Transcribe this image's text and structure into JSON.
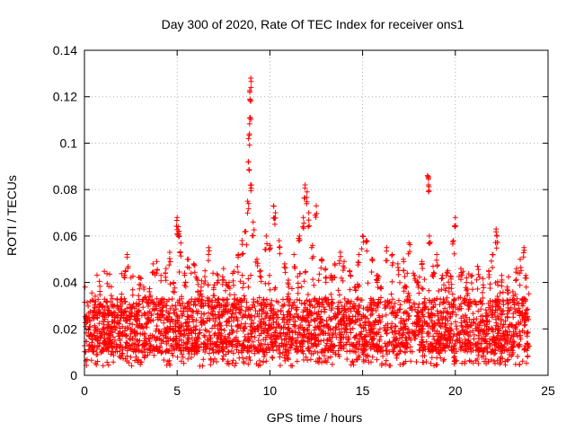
{
  "chart_data": {
    "type": "scatter",
    "title": "Day 300 of 2020, Rate Of TEC Index for receiver ons1",
    "xlabel": "GPS time / hours",
    "ylabel": "ROTI / TECUs",
    "xlim": [
      0,
      25
    ],
    "ylim": [
      0,
      0.14
    ],
    "xticks": [
      0,
      5,
      10,
      15,
      20,
      25
    ],
    "xtick_labels": [
      "0",
      "5",
      "10",
      "15",
      "20",
      "25"
    ],
    "yticks": [
      0,
      0.02,
      0.04,
      0.06,
      0.08,
      0.1,
      0.12,
      0.14
    ],
    "ytick_labels": [
      "0",
      "0.02",
      "0.04",
      "0.06",
      "0.08",
      "0.1",
      "0.12",
      "0.14"
    ],
    "grid": true,
    "marker": "+",
    "color": "#ff0000",
    "series": [
      {
        "name": "ROTI",
        "points": [
          [
            0.1,
            0.024
          ],
          [
            0.3,
            0.021
          ],
          [
            0.5,
            0.028
          ],
          [
            0.8,
            0.019
          ],
          [
            1.0,
            0.03
          ],
          [
            1.3,
            0.022
          ],
          [
            1.5,
            0.033
          ],
          [
            1.8,
            0.026
          ],
          [
            2.0,
            0.035
          ],
          [
            2.2,
            0.045
          ],
          [
            2.3,
            0.052
          ],
          [
            2.5,
            0.029
          ],
          [
            2.8,
            0.031
          ],
          [
            3.0,
            0.042
          ],
          [
            3.2,
            0.038
          ],
          [
            3.5,
            0.036
          ],
          [
            3.7,
            0.048
          ],
          [
            3.9,
            0.049
          ],
          [
            4.2,
            0.033
          ],
          [
            4.4,
            0.046
          ],
          [
            4.6,
            0.053
          ],
          [
            4.8,
            0.04
          ],
          [
            5.0,
            0.068
          ],
          [
            5.05,
            0.064
          ],
          [
            5.1,
            0.062
          ],
          [
            5.2,
            0.057
          ],
          [
            5.4,
            0.044
          ],
          [
            5.6,
            0.05
          ],
          [
            5.9,
            0.048
          ],
          [
            6.1,
            0.041
          ],
          [
            6.3,
            0.038
          ],
          [
            6.5,
            0.045
          ],
          [
            6.7,
            0.055
          ],
          [
            7.0,
            0.039
          ],
          [
            7.2,
            0.043
          ],
          [
            7.5,
            0.046
          ],
          [
            7.8,
            0.04
          ],
          [
            8.0,
            0.044
          ],
          [
            8.3,
            0.052
          ],
          [
            8.5,
            0.058
          ],
          [
            8.7,
            0.062
          ],
          [
            8.8,
            0.075
          ],
          [
            8.85,
            0.092
          ],
          [
            8.9,
            0.104
          ],
          [
            8.95,
            0.111
          ],
          [
            8.92,
            0.122
          ],
          [
            8.97,
            0.128
          ],
          [
            9.0,
            0.082
          ],
          [
            9.1,
            0.066
          ],
          [
            9.3,
            0.05
          ],
          [
            9.5,
            0.045
          ],
          [
            9.8,
            0.06
          ],
          [
            10.0,
            0.056
          ],
          [
            10.2,
            0.073
          ],
          [
            10.3,
            0.07
          ],
          [
            10.5,
            0.058
          ],
          [
            10.8,
            0.048
          ],
          [
            11.0,
            0.041
          ],
          [
            11.3,
            0.052
          ],
          [
            11.6,
            0.06
          ],
          [
            11.8,
            0.068
          ],
          [
            11.9,
            0.082
          ],
          [
            12.0,
            0.079
          ],
          [
            12.1,
            0.07
          ],
          [
            12.3,
            0.056
          ],
          [
            12.5,
            0.073
          ],
          [
            12.8,
            0.05
          ],
          [
            13.0,
            0.046
          ],
          [
            13.3,
            0.043
          ],
          [
            13.5,
            0.048
          ],
          [
            13.8,
            0.053
          ],
          [
            14.0,
            0.049
          ],
          [
            14.3,
            0.045
          ],
          [
            14.6,
            0.038
          ],
          [
            14.8,
            0.052
          ],
          [
            15.0,
            0.06
          ],
          [
            15.2,
            0.058
          ],
          [
            15.5,
            0.05
          ],
          [
            15.8,
            0.043
          ],
          [
            16.0,
            0.038
          ],
          [
            16.3,
            0.055
          ],
          [
            16.6,
            0.052
          ],
          [
            16.9,
            0.048
          ],
          [
            17.2,
            0.05
          ],
          [
            17.5,
            0.057
          ],
          [
            17.8,
            0.043
          ],
          [
            18.0,
            0.04
          ],
          [
            18.2,
            0.049
          ],
          [
            18.5,
            0.086
          ],
          [
            18.55,
            0.082
          ],
          [
            18.6,
            0.06
          ],
          [
            18.8,
            0.047
          ],
          [
            19.0,
            0.052
          ],
          [
            19.3,
            0.043
          ],
          [
            19.6,
            0.045
          ],
          [
            19.9,
            0.058
          ],
          [
            20.0,
            0.068
          ],
          [
            20.3,
            0.046
          ],
          [
            20.6,
            0.04
          ],
          [
            20.9,
            0.043
          ],
          [
            21.2,
            0.047
          ],
          [
            21.5,
            0.039
          ],
          [
            21.8,
            0.045
          ],
          [
            22.0,
            0.052
          ],
          [
            22.2,
            0.063
          ],
          [
            22.25,
            0.06
          ],
          [
            22.5,
            0.043
          ],
          [
            22.8,
            0.038
          ],
          [
            23.1,
            0.036
          ],
          [
            23.3,
            0.046
          ],
          [
            23.5,
            0.05
          ],
          [
            23.7,
            0.055
          ],
          [
            23.8,
            0.043
          ]
        ],
        "dense_band": {
          "description_values": "bulk of points from 0 to 24 h",
          "x_range": [
            0,
            24
          ],
          "y_low": 0.01,
          "y_high": 0.033,
          "y_min_outliers": 0.004
        }
      }
    ]
  }
}
